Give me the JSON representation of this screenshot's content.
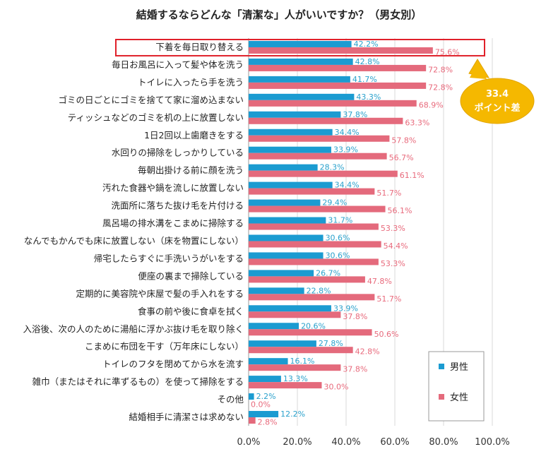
{
  "title": "結婚するならどんな「清潔な」人がいいですか？（男女別）",
  "chart_data": {
    "type": "bar",
    "orientation": "horizontal",
    "categories": [
      "下着を毎日取り替える",
      "毎日お風呂に入って髪や体を洗う",
      "トイレに入ったら手を洗う",
      "ゴミの日ごとにゴミを捨てて家に溜め込まない",
      "ティッシュなどのゴミを机の上に放置しない",
      "1日2回以上歯磨きをする",
      "水回りの掃除をしっかりしている",
      "毎朝出掛ける前に顔を洗う",
      "汚れた食器や鍋を流しに放置しない",
      "洗面所に落ちた抜け毛を片付ける",
      "風呂場の排水溝をこまめに掃除する",
      "なんでもかんでも床に放置しない（床を物置にしない）",
      "帰宅したらすぐに手洗いうがいをする",
      "便座の裏まで掃除している",
      "定期的に美容院や床屋で髪の手入れをする",
      "食事の前や後に食卓を拭く",
      "入浴後、次の人のために湯船に浮かぶ抜け毛を取り除く",
      "こまめに布団を干す（万年床にしない）",
      "トイレのフタを閉めてから水を流す",
      "雑巾（またはそれに準ずるもの）を使って掃除をする",
      "その他",
      "結婚相手に清潔さは求めない"
    ],
    "series": [
      {
        "name": "男性",
        "color": "#1b9bd1",
        "values": [
          42.2,
          42.8,
          41.7,
          43.3,
          37.8,
          34.4,
          33.9,
          28.3,
          34.4,
          29.4,
          31.7,
          30.6,
          30.6,
          26.7,
          22.8,
          33.9,
          20.6,
          27.8,
          16.1,
          13.3,
          2.2,
          12.2
        ],
        "labels": [
          "42.2%",
          "42.8%",
          "41.7%",
          "43.3%",
          "37.8%",
          "34.4%",
          "33.9%",
          "28.3%",
          "34.4%",
          "29.4%",
          "31.7%",
          "30.6%",
          "30.6%",
          "26.7%",
          "22.8%",
          "33.9%",
          "20.6%",
          "27.8%",
          "16.1%",
          "13.3%",
          "2.2%",
          "12.2%"
        ]
      },
      {
        "name": "女性",
        "color": "#e46a7c",
        "values": [
          75.6,
          72.8,
          72.8,
          68.9,
          63.3,
          57.8,
          56.7,
          61.1,
          51.7,
          56.1,
          53.3,
          54.4,
          53.3,
          47.8,
          51.7,
          37.8,
          50.6,
          42.8,
          37.8,
          30.0,
          0.0,
          2.8
        ],
        "labels": [
          "75.6%",
          "72.8%",
          "72.8%",
          "68.9%",
          "63.3%",
          "57.8%",
          "56.7%",
          "61.1%",
          "51.7%",
          "56.1%",
          "53.3%",
          "54.4%",
          "53.3%",
          "47.8%",
          "51.7%",
          "37.8%",
          "50.6%",
          "42.8%",
          "37.8%",
          "30.0%",
          "0.0%",
          "2.8%"
        ]
      }
    ],
    "xlim": [
      0,
      100
    ],
    "x_ticks": [
      "0.0%",
      "20.0%",
      "40.0%",
      "60.0%",
      "80.0%",
      "100.0%"
    ],
    "grid": true,
    "legend_position": "bottom-right",
    "highlighted_category": "下着を毎日取り替える",
    "callout": {
      "line1": "33.4",
      "line2": "ポイント差",
      "color": "#f5b800"
    }
  }
}
